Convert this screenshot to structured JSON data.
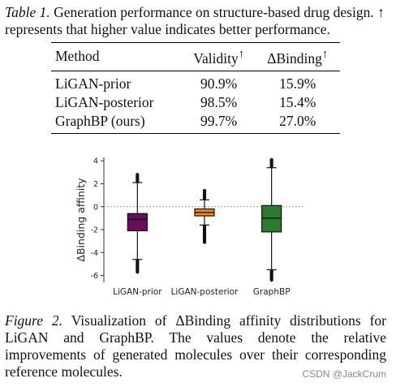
{
  "table": {
    "label": "Table 1.",
    "caption": " Generation performance on structure-based drug design. ↑ represents that higher value indicates better performance.",
    "headers": [
      "Method",
      "Validity",
      "ΔBinding"
    ],
    "header_marks": [
      "",
      "↑",
      "↑"
    ],
    "rows": [
      [
        "LiGAN-prior",
        "90.9%",
        "15.9%"
      ],
      [
        "LiGAN-posterior",
        "98.5%",
        "15.4%"
      ],
      [
        "GraphBP (ours)",
        "99.7%",
        "27.0%"
      ]
    ],
    "bold_row_index": 2
  },
  "figure": {
    "label": "Figure 2.",
    "caption": " Visualization of ΔBinding affinity distributions for LiGAN and GraphBP. The values denote the relative improvements of generated molecules over their corresponding reference molecules."
  },
  "watermark": "CSDN @JackCrum",
  "chart_data": {
    "type": "box",
    "ylabel": "ΔBinding affinity",
    "xlabel": "",
    "ylim": [
      -6.6,
      4.3
    ],
    "yticks": [
      -6,
      -4,
      -2,
      0,
      2,
      4
    ],
    "reference_line": 0,
    "categories": [
      "LiGAN-prior",
      "LiGAN-posterior",
      "GraphBP"
    ],
    "colors": [
      "#6c0c5e",
      "#ea8a20",
      "#2d7a2e"
    ],
    "boxes": [
      {
        "name": "LiGAN-prior",
        "whisker_low": -4.6,
        "q1": -2.1,
        "median": -1.1,
        "q3": -0.6,
        "whisker_high": 2.1,
        "outlier_range_low": [
          -5.7,
          -4.7
        ],
        "outlier_range_high": [
          2.2,
          2.8
        ]
      },
      {
        "name": "LiGAN-posterior",
        "whisker_low": -1.6,
        "q1": -0.8,
        "median": -0.5,
        "q3": -0.2,
        "whisker_high": 0.6,
        "outlier_range_low": [
          -3.1,
          -1.7
        ],
        "outlier_range_high": [
          0.7,
          1.4
        ]
      },
      {
        "name": "GraphBP",
        "whisker_low": -5.5,
        "q1": -2.2,
        "median": -1.0,
        "q3": 0.1,
        "whisker_high": 3.4,
        "outlier_range_low": [
          -6.4,
          -5.6
        ],
        "outlier_range_high": [
          3.5,
          4.1
        ]
      }
    ]
  }
}
